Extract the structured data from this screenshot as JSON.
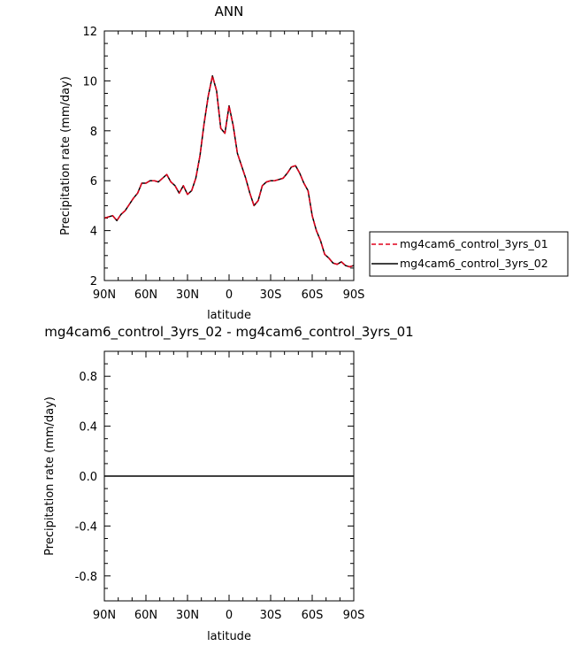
{
  "chart_data": [
    {
      "type": "line",
      "title": "ANN",
      "xlabel": "latitude",
      "ylabel": "Precipitation rate (mm/day)",
      "xlim": [
        90,
        -90
      ],
      "ylim": [
        2,
        12
      ],
      "x_ticks": [
        90,
        60,
        30,
        0,
        -30,
        -60,
        -90
      ],
      "x_tick_labels": [
        "90N",
        "60N",
        "30N",
        "0",
        "30S",
        "60S",
        "90S"
      ],
      "y_ticks": [
        2,
        4,
        6,
        8,
        10,
        12
      ],
      "y_tick_labels": [
        "2",
        "4",
        "6",
        "8",
        "10",
        "12"
      ],
      "legend": "right",
      "x": [
        90,
        87,
        84,
        81,
        78,
        75,
        72,
        69,
        66,
        63,
        60,
        57,
        54,
        51,
        48,
        45,
        42,
        39,
        36,
        33,
        30,
        27,
        24,
        21,
        18,
        15,
        12,
        9,
        6,
        3,
        0,
        -3,
        -6,
        -9,
        -12,
        -15,
        -18,
        -21,
        -24,
        -27,
        -30,
        -33,
        -36,
        -39,
        -42,
        -45,
        -48,
        -51,
        -54,
        -57,
        -60,
        -63,
        -66,
        -69,
        -72,
        -75,
        -78,
        -81,
        -84,
        -87,
        -90
      ],
      "series": [
        {
          "name": "mg4cam6_control_3yrs_01",
          "color": "#e0001b",
          "dash": "dashed",
          "values": [
            4.5,
            4.55,
            4.6,
            4.4,
            4.65,
            4.8,
            5.05,
            5.3,
            5.5,
            5.9,
            5.9,
            6.0,
            6.0,
            5.95,
            6.1,
            6.25,
            5.95,
            5.8,
            5.5,
            5.8,
            5.45,
            5.6,
            6.1,
            7.0,
            8.3,
            9.4,
            10.2,
            9.6,
            8.1,
            7.9,
            9.0,
            8.2,
            7.1,
            6.6,
            6.1,
            5.5,
            5.0,
            5.2,
            5.8,
            5.95,
            6.0,
            6.0,
            6.05,
            6.1,
            6.3,
            6.55,
            6.6,
            6.3,
            5.9,
            5.6,
            4.6,
            4.0,
            3.6,
            3.05,
            2.9,
            2.7,
            2.65,
            2.75,
            2.6,
            2.55,
            2.6
          ]
        },
        {
          "name": "mg4cam6_control_3yrs_02",
          "color": "#000000",
          "dash": "solid",
          "values": [
            4.5,
            4.55,
            4.6,
            4.4,
            4.65,
            4.8,
            5.05,
            5.3,
            5.5,
            5.9,
            5.9,
            6.0,
            6.0,
            5.95,
            6.1,
            6.25,
            5.95,
            5.8,
            5.5,
            5.8,
            5.45,
            5.6,
            6.1,
            7.0,
            8.3,
            9.4,
            10.2,
            9.6,
            8.1,
            7.9,
            9.0,
            8.2,
            7.1,
            6.6,
            6.1,
            5.5,
            5.0,
            5.2,
            5.8,
            5.95,
            6.0,
            6.0,
            6.05,
            6.1,
            6.3,
            6.55,
            6.6,
            6.3,
            5.9,
            5.6,
            4.6,
            4.0,
            3.6,
            3.05,
            2.9,
            2.7,
            2.65,
            2.75,
            2.6,
            2.55,
            2.6
          ]
        }
      ]
    },
    {
      "type": "line",
      "title": "mg4cam6_control_3yrs_02 - mg4cam6_control_3yrs_01",
      "xlabel": "latitude",
      "ylabel": "Precipitation rate (mm/day)",
      "xlim": [
        90,
        -90
      ],
      "ylim": [
        -1,
        1
      ],
      "x_ticks": [
        90,
        60,
        30,
        0,
        -30,
        -60,
        -90
      ],
      "x_tick_labels": [
        "90N",
        "60N",
        "30N",
        "0",
        "30S",
        "60S",
        "90S"
      ],
      "y_ticks": [
        0.8,
        0.4,
        0.0,
        -0.4,
        -0.8
      ],
      "y_tick_labels": [
        "0.8",
        "0.4",
        "0.0",
        "-0.4",
        "-0.8"
      ],
      "x": [
        90,
        -90
      ],
      "series": [
        {
          "color": "#000000",
          "dash": "solid",
          "values": [
            0,
            0
          ]
        }
      ]
    }
  ]
}
